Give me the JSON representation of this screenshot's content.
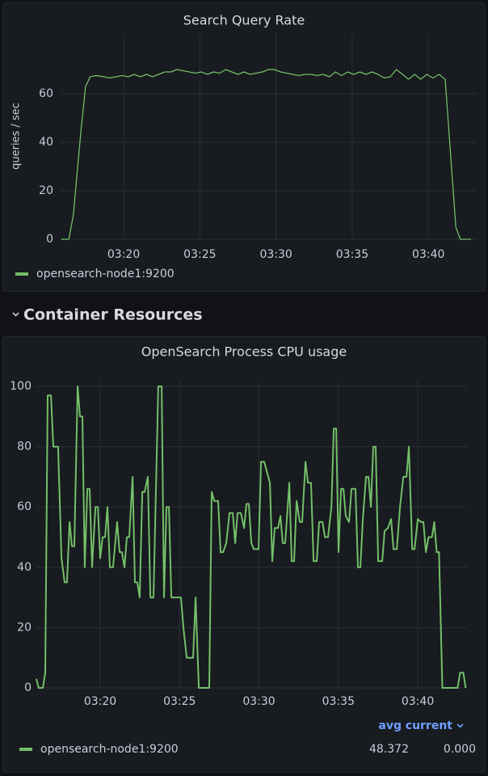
{
  "section_title": "Container Resources",
  "chart_data": [
    {
      "type": "line",
      "title": "Search Query Rate",
      "ylabel": "queries / sec",
      "grid": true,
      "xlim": [
        15.86,
        43.17
      ],
      "ylim": [
        0,
        85
      ],
      "xticks": [
        {
          "value": 20,
          "label": "03:20"
        },
        {
          "value": 25,
          "label": "03:25"
        },
        {
          "value": 30,
          "label": "03:30"
        },
        {
          "value": 35,
          "label": "03:35"
        },
        {
          "value": 40,
          "label": "03:40"
        }
      ],
      "yticks": [
        0,
        20,
        40,
        60
      ],
      "x": [
        15.9,
        16.4,
        16.7,
        16.95,
        17.2,
        17.5,
        17.8,
        18.2,
        18.7,
        19.1,
        19.5,
        19.9,
        20.3,
        20.7,
        21.1,
        21.5,
        21.9,
        22.3,
        22.7,
        23.1,
        23.5,
        23.9,
        24.3,
        24.7,
        25.1,
        25.5,
        25.9,
        26.3,
        26.7,
        27.1,
        27.5,
        27.9,
        28.3,
        28.7,
        29.1,
        29.5,
        29.9,
        30.3,
        30.7,
        31.1,
        31.5,
        31.9,
        32.3,
        32.7,
        33.1,
        33.5,
        33.9,
        34.3,
        34.7,
        35.1,
        35.5,
        35.9,
        36.3,
        36.7,
        37.1,
        37.5,
        37.9,
        38.3,
        38.7,
        39.1,
        39.5,
        39.9,
        40.3,
        40.7,
        41.1,
        41.4,
        41.8,
        42.1,
        42.8
      ],
      "series": [
        {
          "name": "opensearch-node1:9200",
          "color": "#73bf69",
          "values": [
            0,
            0,
            10,
            28,
            45,
            63,
            67,
            67.5,
            67,
            66.5,
            67,
            67.5,
            67,
            68,
            67,
            68,
            67,
            68,
            69,
            69,
            70,
            69.5,
            69,
            68.5,
            69,
            68,
            69,
            68.5,
            70,
            69,
            68,
            69,
            68,
            68.5,
            69,
            70,
            70,
            69,
            68.5,
            68,
            67.5,
            68,
            68,
            67.5,
            68,
            67,
            69,
            67.5,
            69,
            68,
            69,
            68,
            69,
            68,
            66.5,
            67,
            70,
            68,
            66,
            68,
            66,
            68,
            66.5,
            68,
            66,
            40,
            5,
            0,
            0
          ]
        }
      ]
    },
    {
      "type": "line",
      "title": "OpenSearch Process CPU usage",
      "grid": true,
      "xlim": [
        15.98,
        43.1
      ],
      "ylim": [
        0,
        102
      ],
      "xticks": [
        {
          "value": 20,
          "label": "03:20"
        },
        {
          "value": 25,
          "label": "03:25"
        },
        {
          "value": 30,
          "label": "03:30"
        },
        {
          "value": 35,
          "label": "03:35"
        },
        {
          "value": 40,
          "label": "03:40"
        }
      ],
      "yticks": [
        0,
        20,
        40,
        60,
        80,
        100
      ],
      "legend_columns": [
        "avg",
        "current"
      ],
      "x": [
        15.98,
        16.13,
        16.39,
        16.54,
        16.69,
        16.9,
        17.05,
        17.35,
        17.56,
        17.76,
        17.91,
        18.07,
        18.22,
        18.37,
        18.58,
        18.73,
        18.88,
        19.03,
        19.19,
        19.34,
        19.49,
        19.7,
        19.85,
        20.0,
        20.15,
        20.31,
        20.46,
        20.61,
        20.81,
        21.07,
        21.22,
        21.37,
        21.53,
        21.68,
        21.83,
        22.04,
        22.19,
        22.34,
        22.49,
        22.65,
        22.8,
        23.0,
        23.16,
        23.36,
        23.66,
        23.87,
        24.02,
        24.17,
        24.33,
        24.48,
        24.78,
        25.09,
        25.24,
        25.45,
        25.85,
        26.01,
        26.21,
        26.87,
        27.02,
        27.18,
        27.43,
        27.58,
        27.74,
        27.94,
        28.14,
        28.35,
        28.5,
        28.65,
        28.86,
        29.06,
        29.21,
        29.36,
        29.52,
        29.67,
        29.97,
        30.13,
        30.33,
        30.48,
        30.69,
        30.84,
        30.99,
        31.2,
        31.35,
        31.5,
        31.65,
        31.91,
        32.06,
        32.21,
        32.37,
        32.57,
        32.72,
        32.93,
        33.08,
        33.28,
        33.44,
        33.64,
        33.79,
        34.0,
        34.15,
        34.35,
        34.56,
        34.71,
        34.86,
        35.01,
        35.17,
        35.32,
        35.47,
        35.67,
        35.83,
        36.08,
        36.23,
        36.39,
        36.54,
        36.74,
        36.9,
        37.05,
        37.2,
        37.35,
        37.51,
        37.76,
        37.91,
        38.12,
        38.32,
        38.47,
        38.68,
        38.88,
        39.09,
        39.29,
        39.44,
        39.65,
        39.8,
        40.0,
        40.2,
        40.36,
        40.51,
        40.68,
        40.89,
        41.04,
        41.19,
        41.34,
        41.55,
        42.51,
        42.67,
        42.87,
        43.02
      ],
      "series": [
        {
          "name": "opensearch-node1:9200",
          "color": "#73bf69",
          "values": [
            3,
            0,
            0,
            5,
            97,
            97,
            80,
            80,
            43,
            35,
            35,
            55,
            47,
            47,
            100,
            90,
            90,
            40,
            66,
            66,
            40,
            60,
            60,
            43,
            50,
            50,
            60,
            40,
            40,
            55,
            45,
            45,
            40,
            50,
            50,
            70,
            35,
            35,
            30,
            65,
            65,
            70,
            30,
            30,
            100,
            100,
            30,
            60,
            60,
            30,
            30,
            30,
            20,
            10,
            10,
            30,
            0,
            0,
            65,
            62,
            62,
            45,
            45,
            48,
            58,
            58,
            48,
            58,
            58,
            53,
            61,
            61,
            48,
            46,
            46,
            75,
            75,
            72,
            68,
            42,
            53,
            53,
            57,
            48,
            48,
            68,
            42,
            42,
            62,
            55,
            55,
            75,
            68,
            68,
            42,
            42,
            55,
            55,
            50,
            50,
            60,
            86,
            86,
            45,
            66,
            66,
            57,
            55,
            66,
            66,
            40,
            40,
            56,
            70,
            70,
            60,
            80,
            80,
            42,
            42,
            52,
            53,
            56,
            46,
            46,
            60,
            70,
            70,
            80,
            46,
            46,
            56,
            55,
            55,
            45,
            50,
            50,
            55,
            45,
            45,
            0,
            0,
            5,
            5,
            0
          ],
          "stats": [
            48.372,
            0
          ],
          "stats_labels": [
            "48.372",
            "0.000"
          ]
        }
      ]
    }
  ]
}
